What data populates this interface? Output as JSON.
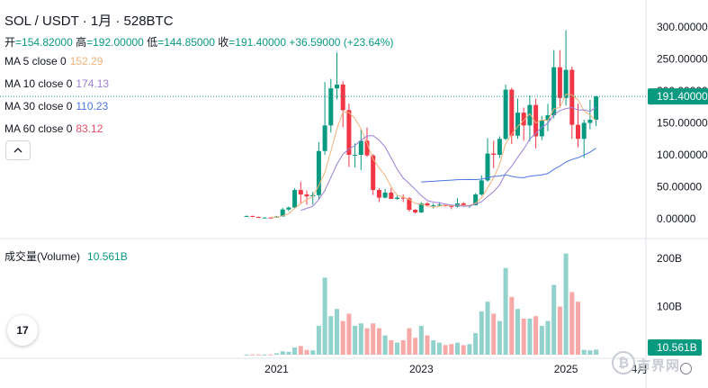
{
  "header": {
    "title": "SOL / USDT · 1月 · 528BTC",
    "ohlc": {
      "open_label": "开",
      "open": "=154.82000",
      "high_label": "高",
      "high": "=192.00000",
      "low_label": "低",
      "low": "=144.85000",
      "close_label": "收",
      "close": "=191.40000",
      "change": "+36.59000 (+23.64%)"
    }
  },
  "ma_legend": [
    {
      "label": "MA 5 close 0",
      "value": "152.29",
      "color": "#f2b27a"
    },
    {
      "label": "MA 10 close 0",
      "value": "174.13",
      "color": "#9c7ed6"
    },
    {
      "label": "MA 30 close 0",
      "value": "110.23",
      "color": "#4a77e0"
    },
    {
      "label": "MA 60 close 0",
      "value": "83.12",
      "color": "#e64d6b"
    }
  ],
  "volume_legend": {
    "label": "成交量(Volume)",
    "value": "10.561B"
  },
  "price_axis": {
    "ticks": [
      "300.00000",
      "250.00000",
      "200.00000",
      "150.00000",
      "100.00000",
      "50.00000",
      "0.00000"
    ],
    "last_price_label": "191.40000"
  },
  "volume_axis": {
    "ticks": [
      "200B",
      "100B"
    ],
    "last_volume_label": "10.561B"
  },
  "time_axis": {
    "ticks": [
      "2021",
      "2023",
      "2025",
      "4月"
    ]
  },
  "watermark": {
    "text": "市界网",
    "glyph": "₿"
  },
  "logo": {
    "text": "17"
  },
  "colors": {
    "up": "#089981",
    "down": "#f23645",
    "up_vol": "#92d2cc",
    "down_vol": "#f7a9a7"
  },
  "chart_data": {
    "type": "candlestick",
    "title": "SOL / USDT · 1月 · 528BTC",
    "y_range": [
      0,
      300
    ],
    "volume_range": [
      0,
      210
    ],
    "volume_unit": "B",
    "candles": [
      {
        "t": "2020-08",
        "o": 3.0,
        "h": 4.9,
        "l": 2.8,
        "c": 4.4,
        "v": 0.4
      },
      {
        "t": "2020-09",
        "o": 4.4,
        "h": 4.6,
        "l": 2.2,
        "c": 3.0,
        "v": 0.6
      },
      {
        "t": "2020-10",
        "o": 3.0,
        "h": 3.2,
        "l": 1.2,
        "c": 1.5,
        "v": 0.5
      },
      {
        "t": "2020-11",
        "o": 1.5,
        "h": 2.5,
        "l": 1.4,
        "c": 1.9,
        "v": 0.5
      },
      {
        "t": "2020-12",
        "o": 1.9,
        "h": 2.0,
        "l": 1.4,
        "c": 1.5,
        "v": 0.6
      },
      {
        "t": "2021-01",
        "o": 1.5,
        "h": 4.4,
        "l": 1.5,
        "c": 3.5,
        "v": 3.0
      },
      {
        "t": "2021-02",
        "o": 3.5,
        "h": 17.0,
        "l": 3.5,
        "c": 14.5,
        "v": 7.0
      },
      {
        "t": "2021-03",
        "o": 14.5,
        "h": 19.0,
        "l": 12.0,
        "c": 17.5,
        "v": 6.0
      },
      {
        "t": "2021-04",
        "o": 17.5,
        "h": 48.0,
        "l": 16.0,
        "c": 45.0,
        "v": 15.0
      },
      {
        "t": "2021-05",
        "o": 45.0,
        "h": 58.0,
        "l": 24.0,
        "c": 38.0,
        "v": 18.0
      },
      {
        "t": "2021-06",
        "o": 38.0,
        "h": 44.0,
        "l": 22.0,
        "c": 35.0,
        "v": 10.0
      },
      {
        "t": "2021-07",
        "o": 35.0,
        "h": 42.0,
        "l": 22.0,
        "c": 37.0,
        "v": 9.0
      },
      {
        "t": "2021-08",
        "o": 37.0,
        "h": 120.0,
        "l": 31.0,
        "c": 106.0,
        "v": 60.0
      },
      {
        "t": "2021-09",
        "o": 106.0,
        "h": 214.0,
        "l": 100.0,
        "c": 146.0,
        "v": 160.0
      },
      {
        "t": "2021-10",
        "o": 146.0,
        "h": 219.0,
        "l": 135.0,
        "c": 204.0,
        "v": 80.0
      },
      {
        "t": "2021-11",
        "o": 204.0,
        "h": 260.0,
        "l": 187.0,
        "c": 210.0,
        "v": 95.0
      },
      {
        "t": "2021-12",
        "o": 210.0,
        "h": 215.0,
        "l": 143.0,
        "c": 170.0,
        "v": 70.0
      },
      {
        "t": "2022-01",
        "o": 170.0,
        "h": 180.0,
        "l": 81.0,
        "c": 100.0,
        "v": 85.0
      },
      {
        "t": "2022-02",
        "o": 100.0,
        "h": 118.0,
        "l": 80.0,
        "c": 100.0,
        "v": 60.0
      },
      {
        "t": "2022-03",
        "o": 100.0,
        "h": 140.0,
        "l": 76.0,
        "c": 122.0,
        "v": 65.0
      },
      {
        "t": "2022-04",
        "o": 122.0,
        "h": 143.0,
        "l": 97.0,
        "c": 99.0,
        "v": 55.0
      },
      {
        "t": "2022-05",
        "o": 99.0,
        "h": 101.0,
        "l": 37.0,
        "c": 45.0,
        "v": 65.0
      },
      {
        "t": "2022-06",
        "o": 45.0,
        "h": 48.0,
        "l": 26.0,
        "c": 33.0,
        "v": 55.0
      },
      {
        "t": "2022-07",
        "o": 33.0,
        "h": 47.0,
        "l": 32.0,
        "c": 41.0,
        "v": 40.0
      },
      {
        "t": "2022-08",
        "o": 41.0,
        "h": 48.0,
        "l": 31.0,
        "c": 31.0,
        "v": 30.0
      },
      {
        "t": "2022-09",
        "o": 31.0,
        "h": 36.0,
        "l": 30.0,
        "c": 33.0,
        "v": 25.0
      },
      {
        "t": "2022-10",
        "o": 33.0,
        "h": 38.0,
        "l": 26.0,
        "c": 32.0,
        "v": 30.0
      },
      {
        "t": "2022-11",
        "o": 32.0,
        "h": 34.0,
        "l": 11.0,
        "c": 14.0,
        "v": 55.0
      },
      {
        "t": "2022-12",
        "o": 14.0,
        "h": 15.0,
        "l": 8.0,
        "c": 10.0,
        "v": 35.0
      },
      {
        "t": "2023-01",
        "o": 10.0,
        "h": 26.0,
        "l": 9.0,
        "c": 24.0,
        "v": 60.0
      },
      {
        "t": "2023-02",
        "o": 24.0,
        "h": 26.0,
        "l": 19.0,
        "c": 21.0,
        "v": 40.0
      },
      {
        "t": "2023-03",
        "o": 21.0,
        "h": 24.0,
        "l": 16.0,
        "c": 21.0,
        "v": 30.0
      },
      {
        "t": "2023-04",
        "o": 21.0,
        "h": 26.0,
        "l": 19.0,
        "c": 22.0,
        "v": 25.0
      },
      {
        "t": "2023-05",
        "o": 22.0,
        "h": 23.0,
        "l": 19.0,
        "c": 20.0,
        "v": 20.0
      },
      {
        "t": "2023-06",
        "o": 20.0,
        "h": 21.0,
        "l": 15.0,
        "c": 19.0,
        "v": 22.0
      },
      {
        "t": "2023-07",
        "o": 19.0,
        "h": 32.0,
        "l": 18.0,
        "c": 24.0,
        "v": 25.0
      },
      {
        "t": "2023-08",
        "o": 24.0,
        "h": 26.0,
        "l": 19.0,
        "c": 20.0,
        "v": 20.0
      },
      {
        "t": "2023-09",
        "o": 20.0,
        "h": 22.0,
        "l": 17.0,
        "c": 21.0,
        "v": 22.0
      },
      {
        "t": "2023-10",
        "o": 21.0,
        "h": 40.0,
        "l": 21.0,
        "c": 38.0,
        "v": 45.0
      },
      {
        "t": "2023-11",
        "o": 38.0,
        "h": 68.0,
        "l": 36.0,
        "c": 60.0,
        "v": 90.0
      },
      {
        "t": "2023-12",
        "o": 60.0,
        "h": 126.0,
        "l": 58.0,
        "c": 102.0,
        "v": 110.0
      },
      {
        "t": "2024-01",
        "o": 102.0,
        "h": 122.0,
        "l": 79.0,
        "c": 100.0,
        "v": 85.0
      },
      {
        "t": "2024-02",
        "o": 100.0,
        "h": 129.0,
        "l": 95.0,
        "c": 125.0,
        "v": 70.0
      },
      {
        "t": "2024-03",
        "o": 125.0,
        "h": 210.0,
        "l": 123.0,
        "c": 202.0,
        "v": 180.0
      },
      {
        "t": "2024-04",
        "o": 202.0,
        "h": 205.0,
        "l": 117.0,
        "c": 130.0,
        "v": 120.0
      },
      {
        "t": "2024-05",
        "o": 130.0,
        "h": 188.0,
        "l": 125.0,
        "c": 166.0,
        "v": 95.0
      },
      {
        "t": "2024-06",
        "o": 166.0,
        "h": 174.0,
        "l": 122.0,
        "c": 146.0,
        "v": 75.0
      },
      {
        "t": "2024-07",
        "o": 146.0,
        "h": 193.0,
        "l": 121.0,
        "c": 178.0,
        "v": 75.0
      },
      {
        "t": "2024-08",
        "o": 178.0,
        "h": 188.0,
        "l": 110.0,
        "c": 129.0,
        "v": 80.0
      },
      {
        "t": "2024-09",
        "o": 129.0,
        "h": 161.0,
        "l": 123.0,
        "c": 154.0,
        "v": 60.0
      },
      {
        "t": "2024-10",
        "o": 154.0,
        "h": 180.0,
        "l": 137.0,
        "c": 162.0,
        "v": 70.0
      },
      {
        "t": "2024-11",
        "o": 162.0,
        "h": 264.0,
        "l": 157.0,
        "c": 237.0,
        "v": 145.0
      },
      {
        "t": "2024-12",
        "o": 237.0,
        "h": 264.0,
        "l": 176.0,
        "c": 189.0,
        "v": 100.0
      },
      {
        "t": "2025-01",
        "o": 189.0,
        "h": 295.0,
        "l": 177.0,
        "c": 233.0,
        "v": 210.0
      },
      {
        "t": "2025-02",
        "o": 233.0,
        "h": 238.0,
        "l": 125.0,
        "c": 147.0,
        "v": 130.0
      },
      {
        "t": "2025-03",
        "o": 147.0,
        "h": 180.0,
        "l": 112.0,
        "c": 125.0,
        "v": 110.0
      },
      {
        "t": "2025-04",
        "o": 125.0,
        "h": 155.0,
        "l": 95.0,
        "c": 150.0,
        "v": 10.0
      },
      {
        "t": "2025-05",
        "o": 150.0,
        "h": 186.0,
        "l": 140.0,
        "c": 154.8,
        "v": 9.0
      },
      {
        "t": "2025-06",
        "o": 154.8,
        "h": 192.0,
        "l": 144.85,
        "c": 191.4,
        "v": 10.561
      }
    ],
    "ma_lengths": [
      5,
      10,
      30,
      60
    ]
  }
}
